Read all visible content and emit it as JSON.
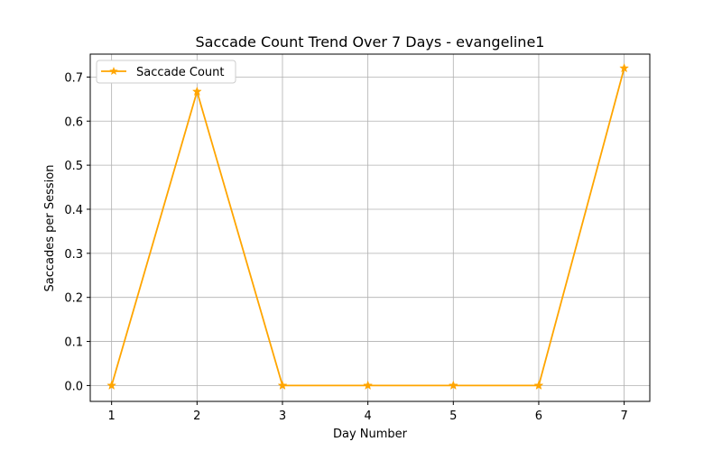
{
  "chart_data": {
    "type": "line",
    "title": "Saccade Count Trend Over 7 Days - evangeline1",
    "xlabel": "Day Number",
    "ylabel": "Saccades per Session",
    "x": [
      1,
      2,
      3,
      4,
      5,
      6,
      7
    ],
    "xticks": [
      "1",
      "2",
      "3",
      "4",
      "5",
      "6",
      "7"
    ],
    "yticks": [
      "0.0",
      "0.1",
      "0.2",
      "0.3",
      "0.4",
      "0.5",
      "0.6",
      "0.7"
    ],
    "xlim": [
      0.75,
      7.3
    ],
    "ylim": [
      -0.036,
      0.752
    ],
    "grid": true,
    "legend_position": "upper-left",
    "series": [
      {
        "name": "Saccade Count",
        "color": "#ffa500",
        "marker": "star",
        "values": [
          0.0,
          0.667,
          0.0,
          0.0,
          0.0,
          0.0,
          0.72
        ]
      }
    ]
  }
}
